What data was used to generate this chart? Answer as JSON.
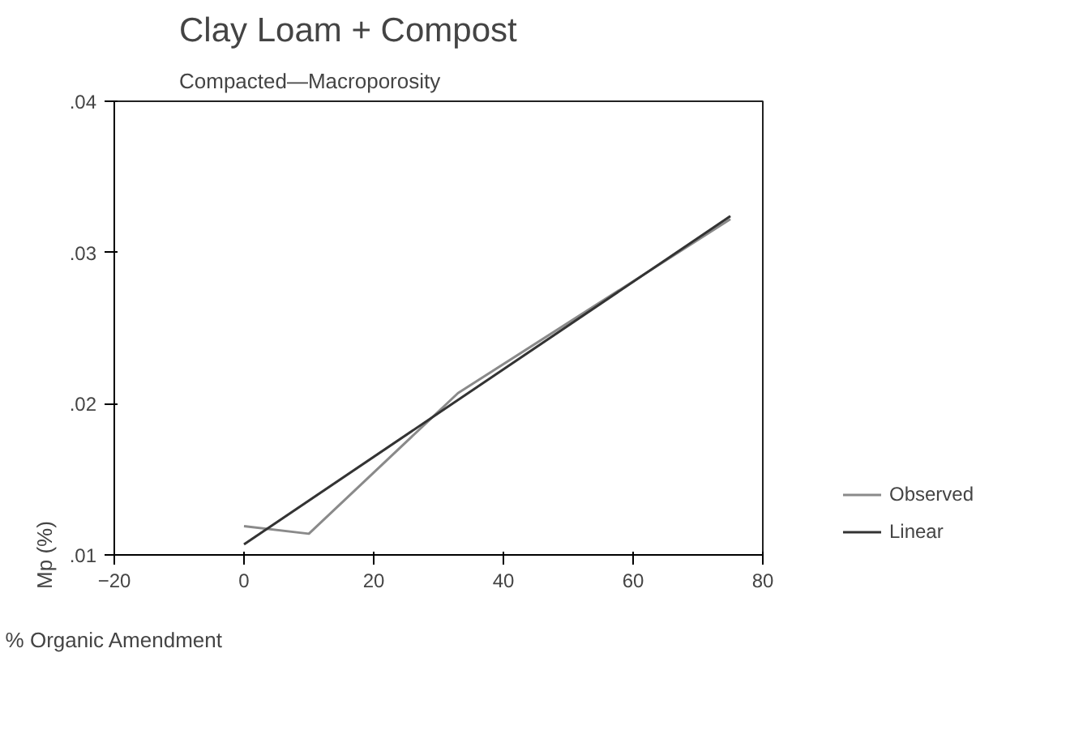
{
  "chart_data": {
    "type": "line",
    "title": "Clay Loam + Compost",
    "subtitle": "Compacted—Macroporosity",
    "xlabel": "% Organic Amendment",
    "ylabel": "Mp (%)",
    "xlim": [
      -20,
      80
    ],
    "xticks": [
      -20,
      0,
      20,
      40,
      60,
      80
    ],
    "ylim": [
      0.01,
      0.04
    ],
    "yticks": [
      {
        "value": 0.01,
        "label": ".01"
      },
      {
        "value": 0.02,
        "label": ".02"
      },
      {
        "value": 0.03,
        "label": ".03"
      },
      {
        "value": 0.04,
        "label": ".04"
      }
    ],
    "grid": false,
    "legend": "right",
    "marker": "none",
    "line_style": "solid",
    "series": [
      {
        "name": "Observed",
        "color": "#8a8a8a",
        "x": [
          0,
          10,
          33,
          75
        ],
        "values": [
          0.0119,
          0.0114,
          0.0207,
          0.0322
        ]
      },
      {
        "name": "Linear",
        "color": "#333333",
        "x": [
          0,
          75
        ],
        "values": [
          0.0107,
          0.0324
        ]
      }
    ]
  }
}
